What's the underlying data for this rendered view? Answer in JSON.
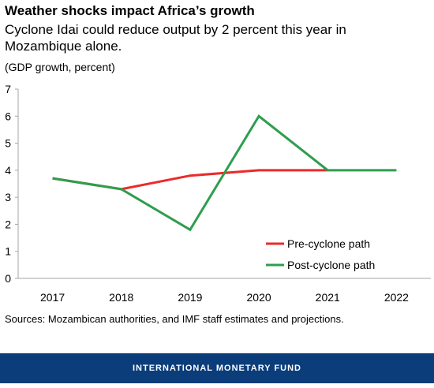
{
  "title": "Weather shocks impact Africa’s growth",
  "subtitle": "Cyclone Idai could reduce output by 2 percent this year in Mozambique alone.",
  "unit_label": "(GDP growth, percent)",
  "source": "Sources: Mozambican authorities, and IMF staff estimates and projections.",
  "footer": "INTERNATIONAL MONETARY FUND",
  "chart_data": {
    "type": "line",
    "x": [
      "2017",
      "2018",
      "2019",
      "2020",
      "2021",
      "2022"
    ],
    "ylim": [
      0,
      7
    ],
    "yticks": [
      0,
      1,
      2,
      3,
      4,
      5,
      6,
      7
    ],
    "grid": false,
    "legend_position": "bottom-right",
    "series": [
      {
        "name": "Pre-cyclone path",
        "color": "#ea2b2b",
        "values": [
          3.7,
          3.3,
          3.8,
          4.0,
          4.0,
          null
        ]
      },
      {
        "name": "Post-cyclone path",
        "color": "#2e9e4e",
        "values": [
          3.7,
          3.3,
          1.8,
          6.0,
          4.0,
          4.0
        ]
      }
    ]
  }
}
